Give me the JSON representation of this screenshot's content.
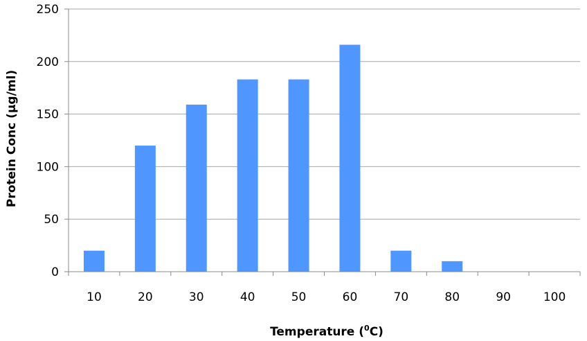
{
  "chart_data": {
    "type": "bar",
    "title": "",
    "xlabel": "Temperature (",
    "xlabel_sup": "0",
    "xlabel_unit": "C)",
    "ylabel": "Protein Conc (µg/ml)",
    "categories": [
      "10",
      "20",
      "30",
      "40",
      "50",
      "60",
      "70",
      "80",
      "90",
      "100"
    ],
    "values": [
      20,
      120,
      159,
      183,
      183,
      216,
      20,
      10,
      0,
      0
    ],
    "ylim": [
      0,
      250
    ],
    "yticks": [
      "0",
      "50",
      "100",
      "150",
      "200",
      "250"
    ],
    "grid": true,
    "legend": "none",
    "colors": {
      "bar": "#4F96FF",
      "grid": "#A6A6A6",
      "axis": "#888888"
    }
  }
}
